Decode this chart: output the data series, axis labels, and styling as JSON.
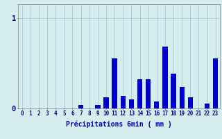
{
  "categories": [
    0,
    1,
    2,
    3,
    4,
    5,
    6,
    7,
    8,
    9,
    10,
    11,
    12,
    13,
    14,
    15,
    16,
    17,
    18,
    19,
    20,
    21,
    22,
    23
  ],
  "values": [
    0,
    0,
    0,
    0,
    0,
    0,
    0,
    0.04,
    0,
    0.04,
    0.12,
    0.55,
    0.14,
    0.1,
    0.32,
    0.32,
    0.08,
    0.68,
    0.38,
    0.24,
    0.12,
    0,
    0.05,
    0.55
  ],
  "bar_color": "#0000cc",
  "background_color": "#d4eeee",
  "grid_color": "#a0c8c8",
  "axis_color": "#888888",
  "xlabel": "Précipitations 6min ( mm )",
  "xlabel_color": "#0000aa",
  "xlabel_fontsize": 7,
  "tick_color": "#000080",
  "tick_fontsize": 5.5,
  "ytick_labels": [
    "0",
    "1"
  ],
  "ytick_values": [
    0,
    1
  ],
  "ylim": [
    0,
    1.15
  ],
  "xlim": [
    -0.5,
    23.5
  ],
  "figsize": [
    3.2,
    2.0
  ],
  "dpi": 100
}
